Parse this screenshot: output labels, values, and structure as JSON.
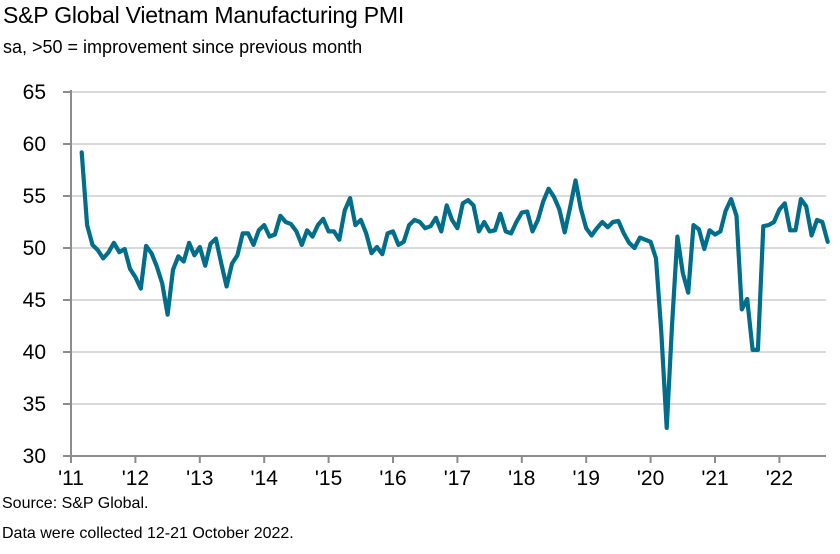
{
  "header": {
    "title": "S&P Global Vietnam Manufacturing PMI",
    "subtitle": "sa, >50 = improvement since previous month"
  },
  "footer": {
    "source": "Source: S&P Global.",
    "collected": "Data were collected 12-21 October 2022."
  },
  "colors": {
    "line": "#006e8a",
    "grid": "#d9d9d9",
    "axis": "#8c8c8c"
  },
  "chart_data": {
    "type": "line",
    "title": "S&P Global Vietnam Manufacturing PMI",
    "subtitle": "sa, >50 = improvement since previous month",
    "xlabel": "",
    "ylabel": "",
    "ylim": [
      30,
      65
    ],
    "yticks": [
      30,
      35,
      40,
      45,
      50,
      55,
      60,
      65
    ],
    "ytick_labels": [
      "30",
      "35",
      "40",
      "45",
      "50",
      "55",
      "60",
      "65"
    ],
    "xtick_labels": [
      "'11",
      "'12",
      "'13",
      "'14",
      "'15",
      "'16",
      "'17",
      "'18",
      "'19",
      "'20",
      "'21",
      "'22"
    ],
    "x_start": "2011-03",
    "x_end": "2022-10",
    "frequency": "monthly",
    "grid": true,
    "legend": "none",
    "series": [
      {
        "name": "Vietnam Manufacturing PMI",
        "values": [
          59.2,
          52.2,
          50.3,
          49.8,
          49.0,
          49.6,
          50.5,
          49.6,
          49.9,
          48.0,
          47.2,
          46.1,
          50.2,
          49.5,
          48.2,
          46.6,
          43.6,
          47.9,
          49.2,
          48.7,
          50.5,
          49.3,
          50.1,
          48.3,
          50.4,
          50.9,
          48.5,
          46.3,
          48.5,
          49.3,
          51.4,
          51.4,
          50.3,
          51.7,
          52.2,
          51.1,
          51.3,
          53.1,
          52.5,
          52.3,
          51.6,
          50.3,
          51.7,
          51.1,
          52.2,
          52.8,
          51.6,
          51.6,
          50.8,
          53.6,
          54.8,
          52.2,
          52.7,
          51.4,
          49.5,
          50.1,
          49.4,
          51.4,
          51.6,
          50.3,
          50.6,
          52.2,
          52.7,
          52.5,
          51.9,
          52.1,
          52.9,
          51.6,
          54.1,
          52.7,
          51.9,
          54.3,
          54.6,
          54.1,
          51.6,
          52.5,
          51.6,
          51.7,
          53.3,
          51.6,
          51.4,
          52.5,
          53.4,
          53.5,
          51.6,
          52.7,
          54.5,
          55.7,
          54.9,
          53.7,
          51.5,
          53.9,
          56.5,
          53.8,
          51.9,
          51.2,
          51.9,
          52.5,
          52.0,
          52.5,
          52.6,
          51.4,
          50.5,
          50.0,
          51.0,
          50.8,
          50.6,
          49.0,
          41.9,
          32.7,
          42.7,
          51.1,
          47.6,
          45.7,
          52.2,
          51.8,
          49.9,
          51.7,
          51.3,
          51.6,
          53.6,
          54.7,
          53.1,
          44.1,
          45.1,
          40.2,
          40.2,
          52.1,
          52.2,
          52.5,
          53.7,
          54.3,
          51.7,
          51.7,
          54.7,
          54.0,
          51.2,
          52.7,
          52.5,
          50.6
        ]
      }
    ]
  }
}
